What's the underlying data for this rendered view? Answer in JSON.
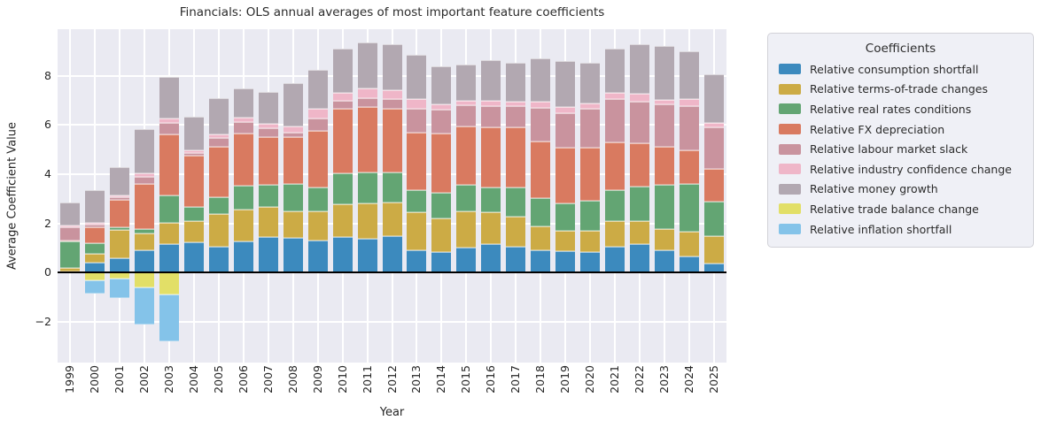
{
  "title": "Financials: OLS annual averages of most important feature coefficients",
  "xlabel": "Year",
  "ylabel": "Average Coefficient Value",
  "legend": {
    "title": "Coefficients"
  },
  "colors": {
    "plot_background": "#eaeaf2",
    "grid": "#ffffff",
    "zero_line": "#000000",
    "text": "#262626"
  },
  "chart_data": {
    "type": "bar",
    "stacked": true,
    "title": "Financials: OLS annual averages of most important feature coefficients",
    "xlabel": "Year",
    "ylabel": "Average Coefficient Value",
    "ylim": [
      -3.66,
      9.9
    ],
    "yticks": [
      {
        "value": -2,
        "label": "−2"
      },
      {
        "value": 0,
        "label": "0"
      },
      {
        "value": 2,
        "label": "2"
      },
      {
        "value": 4,
        "label": "4"
      },
      {
        "value": 6,
        "label": "6"
      },
      {
        "value": 8,
        "label": "8"
      }
    ],
    "grid": true,
    "legend_position": "outside-right",
    "categories": [
      "1999",
      "2000",
      "2001",
      "2002",
      "2003",
      "2004",
      "2005",
      "2006",
      "2007",
      "2008",
      "2009",
      "2010",
      "2011",
      "2012",
      "2013",
      "2014",
      "2015",
      "2016",
      "2017",
      "2018",
      "2019",
      "2020",
      "2021",
      "2022",
      "2023",
      "2024",
      "2025"
    ],
    "series": [
      {
        "name": "Relative consumption shortfall",
        "color": "#3c8abe",
        "values": [
          0.05,
          0.4,
          0.57,
          0.9,
          1.15,
          1.22,
          1.04,
          1.27,
          1.46,
          1.4,
          1.3,
          1.43,
          1.37,
          1.47,
          0.92,
          0.82,
          1.03,
          1.15,
          1.06,
          0.91,
          0.88,
          0.82,
          1.06,
          1.15,
          0.91,
          0.66,
          0.37
        ]
      },
      {
        "name": "Relative terms-of-trade changes",
        "color": "#ccab45",
        "values": [
          0.15,
          0.37,
          1.18,
          0.68,
          0.86,
          0.88,
          1.35,
          1.28,
          1.22,
          1.1,
          1.2,
          1.35,
          1.46,
          1.37,
          1.52,
          1.4,
          1.47,
          1.3,
          1.22,
          0.98,
          0.81,
          0.88,
          1.03,
          0.94,
          0.86,
          1.0,
          1.1
        ]
      },
      {
        "name": "Relative real rates conditions",
        "color": "#63a573",
        "values": [
          1.05,
          0.42,
          0.08,
          0.18,
          1.12,
          0.58,
          0.67,
          1.0,
          0.9,
          1.12,
          0.95,
          1.25,
          1.25,
          1.22,
          0.9,
          1.02,
          1.06,
          1.02,
          1.17,
          1.15,
          1.14,
          1.22,
          1.25,
          1.4,
          1.79,
          1.94,
          1.42
        ]
      },
      {
        "name": "Relative FX depreciation",
        "color": "#d97a60",
        "values": [
          0.05,
          0.65,
          1.12,
          1.86,
          2.5,
          2.06,
          2.04,
          2.12,
          1.92,
          1.88,
          2.32,
          2.62,
          2.66,
          2.62,
          2.35,
          2.42,
          2.4,
          2.42,
          2.44,
          2.3,
          2.24,
          2.16,
          1.97,
          1.76,
          1.56,
          1.39,
          1.33
        ]
      },
      {
        "name": "Relative labour market slack",
        "color": "#c9939e",
        "values": [
          0.55,
          0.1,
          0.1,
          0.26,
          0.46,
          0.14,
          0.37,
          0.46,
          0.36,
          0.2,
          0.5,
          0.33,
          0.37,
          0.37,
          0.98,
          0.98,
          0.86,
          0.88,
          0.88,
          1.36,
          1.43,
          1.59,
          1.76,
          1.71,
          1.71,
          1.78,
          1.68
        ]
      },
      {
        "name": "Relative industry confidence change",
        "color": "#efb6c8",
        "values": [
          0.05,
          0.08,
          0.08,
          0.14,
          0.16,
          0.09,
          0.16,
          0.16,
          0.2,
          0.26,
          0.38,
          0.33,
          0.37,
          0.37,
          0.38,
          0.2,
          0.18,
          0.2,
          0.19,
          0.25,
          0.25,
          0.2,
          0.25,
          0.3,
          0.21,
          0.29,
          0.17
        ]
      },
      {
        "name": "Relative money growth",
        "color": "#b2a8b1",
        "values": [
          0.95,
          1.33,
          1.17,
          1.83,
          1.7,
          1.38,
          1.47,
          1.21,
          1.29,
          1.74,
          1.6,
          1.79,
          1.87,
          1.88,
          1.8,
          1.56,
          1.45,
          1.68,
          1.59,
          1.75,
          1.85,
          1.68,
          1.78,
          2.04,
          2.16,
          1.94,
          1.98
        ]
      },
      {
        "name": "Relative trade balance change",
        "color": "#e2df67",
        "values": [
          0,
          -0.3,
          -0.25,
          -0.6,
          -0.88,
          0,
          0,
          0,
          0,
          0,
          0,
          0,
          0,
          0,
          0,
          0,
          0,
          0,
          0,
          0,
          0,
          0,
          0,
          0,
          0,
          0,
          0
        ]
      },
      {
        "name": "Relative inflation shortfall",
        "color": "#84c3e9",
        "values": [
          0,
          -0.55,
          -0.8,
          -1.5,
          -1.92,
          0,
          0,
          0,
          0,
          0,
          0,
          0,
          0,
          0,
          0,
          0,
          0,
          0,
          0,
          0,
          0,
          0,
          0,
          0,
          0,
          0,
          0
        ]
      }
    ]
  }
}
